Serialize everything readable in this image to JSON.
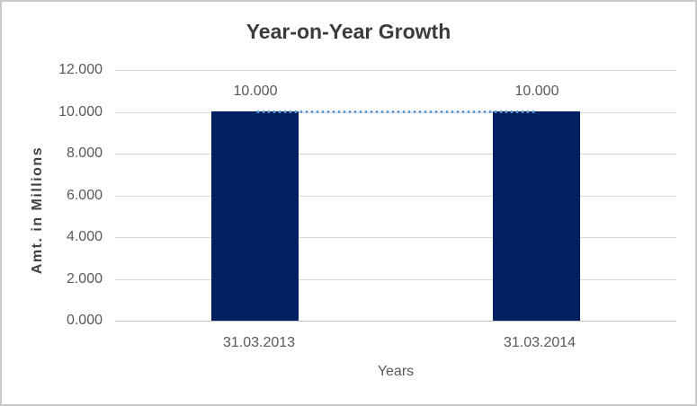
{
  "window": {
    "background": "#ffffff",
    "frame_border_color": "#c9c9c9"
  },
  "chart_data": {
    "type": "bar",
    "title": "Year-on-Year Growth",
    "xlabel": "Years",
    "ylabel": "Amt. in Millions",
    "categories": [
      "31.03.2013",
      "31.03.2014"
    ],
    "values": [
      10.0,
      10.0
    ],
    "data_labels": [
      "10.000",
      "10.000"
    ],
    "y_ticks": [
      "12.000",
      "10.000",
      "8.000",
      "6.000",
      "4.000",
      "2.000",
      "0.000"
    ],
    "ylim": [
      0,
      12
    ],
    "grid": "horizontal",
    "gridline_color": "#d9d9d9",
    "legend_position": "none",
    "bar_color": "#002060",
    "trendline": {
      "type": "linear",
      "style": "dotted",
      "color": "#5B9BD5",
      "level": 10.0
    }
  }
}
